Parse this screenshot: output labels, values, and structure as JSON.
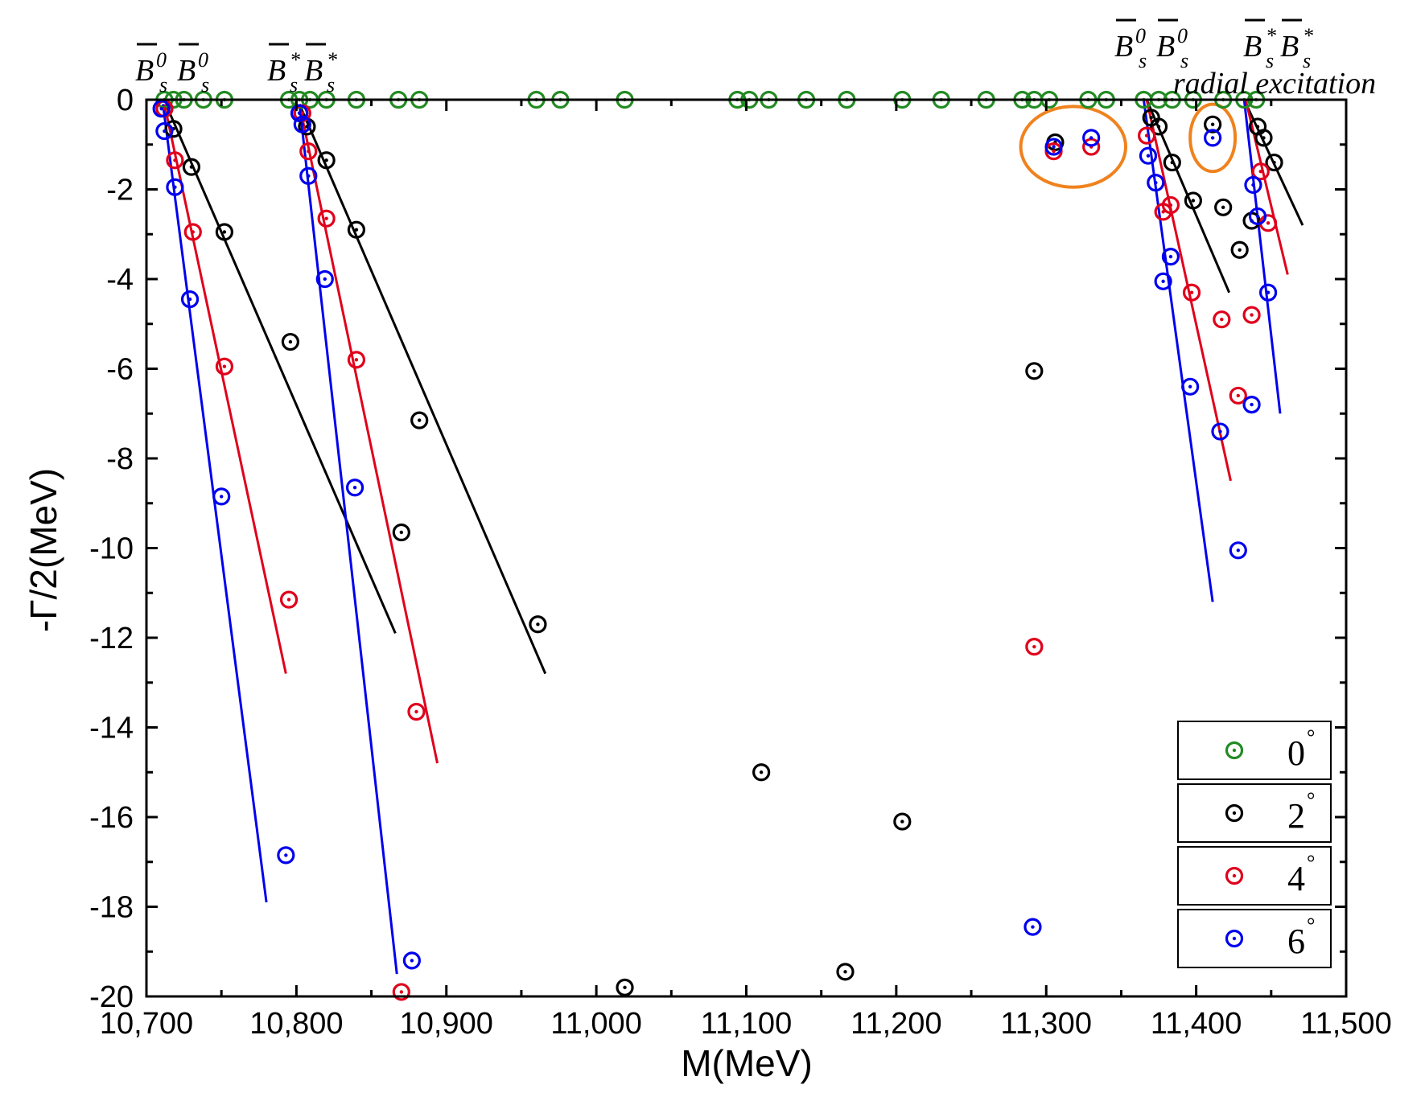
{
  "chart_data": {
    "type": "scatter",
    "xlabel": "M(MeV)",
    "ylabel": "-Γ/2(MeV)",
    "xlim": [
      10700,
      11500
    ],
    "ylim": [
      -20,
      0
    ],
    "x_ticks": [
      10700,
      10800,
      10900,
      11000,
      11100,
      11200,
      11300,
      11400,
      11500
    ],
    "x_tick_labels": [
      "10,700",
      "10,800",
      "10,900",
      "11,000",
      "11,100",
      "11,200",
      "11,300",
      "11,400",
      "11,500"
    ],
    "y_ticks": [
      0,
      -2,
      -4,
      -6,
      -8,
      -10,
      -12,
      -14,
      -16,
      -18,
      -20
    ],
    "y_tick_labels": [
      "0",
      "-2",
      "-4",
      "-6",
      "-8",
      "-10",
      "-12",
      "-14",
      "-16",
      "-18",
      "-20"
    ],
    "series": [
      {
        "name": "0°",
        "angle": "0",
        "color": "#228B22",
        "points": [
          [
            10712,
            0
          ],
          [
            10718,
            0
          ],
          [
            10725,
            0
          ],
          [
            10738,
            0
          ],
          [
            10752,
            0
          ],
          [
            10795,
            0
          ],
          [
            10802,
            0
          ],
          [
            10809,
            0
          ],
          [
            10820,
            0
          ],
          [
            10840,
            0
          ],
          [
            10868,
            0
          ],
          [
            10882,
            0
          ],
          [
            10960,
            0
          ],
          [
            10976,
            0
          ],
          [
            11019,
            0
          ],
          [
            11094,
            0
          ],
          [
            11102,
            0
          ],
          [
            11115,
            0
          ],
          [
            11140,
            0
          ],
          [
            11167,
            0
          ],
          [
            11204,
            0
          ],
          [
            11230,
            0
          ],
          [
            11260,
            0
          ],
          [
            11284,
            0
          ],
          [
            11292,
            0
          ],
          [
            11302,
            0
          ],
          [
            11328,
            0
          ],
          [
            11340,
            0
          ],
          [
            11365,
            0
          ],
          [
            11375,
            0
          ],
          [
            11384,
            0
          ],
          [
            11398,
            0
          ],
          [
            11418,
            0
          ],
          [
            11432,
            0
          ],
          [
            11440,
            0
          ]
        ]
      },
      {
        "name": "2°",
        "angle": "2",
        "color": "#000000",
        "points": [
          [
            10712,
            -0.2
          ],
          [
            10718,
            -0.65
          ],
          [
            10730,
            -1.5
          ],
          [
            10752,
            -2.95
          ],
          [
            10796,
            -5.4
          ],
          [
            10802,
            -0.3
          ],
          [
            10807,
            -0.6
          ],
          [
            10820,
            -1.35
          ],
          [
            10840,
            -2.9
          ],
          [
            10870,
            -9.65
          ],
          [
            10882,
            -7.15
          ],
          [
            10961,
            -11.7
          ],
          [
            11019,
            -19.8
          ],
          [
            11110,
            -15.0
          ],
          [
            11166,
            -19.45
          ],
          [
            11204,
            -16.1
          ],
          [
            11292,
            -6.05
          ],
          [
            11306,
            -0.95
          ],
          [
            11370,
            -0.4
          ],
          [
            11375,
            -0.6
          ],
          [
            11384,
            -1.4
          ],
          [
            11398,
            -2.25
          ],
          [
            11411,
            -0.55
          ],
          [
            11418,
            -2.4
          ],
          [
            11429,
            -3.35
          ],
          [
            11437,
            -2.7
          ],
          [
            11441,
            -0.6
          ],
          [
            11445,
            -0.85
          ],
          [
            11452,
            -1.4
          ]
        ]
      },
      {
        "name": "4°",
        "angle": "4",
        "color": "#E0001B",
        "points": [
          [
            10712,
            -0.2
          ],
          [
            10719,
            -1.35
          ],
          [
            10731,
            -2.95
          ],
          [
            10752,
            -5.95
          ],
          [
            10795,
            -11.15
          ],
          [
            10804,
            -0.3
          ],
          [
            10808,
            -1.15
          ],
          [
            10820,
            -2.65
          ],
          [
            10840,
            -5.8
          ],
          [
            10870,
            -19.9
          ],
          [
            10880,
            -13.65
          ],
          [
            11292,
            -12.2
          ],
          [
            11305,
            -1.15
          ],
          [
            11330,
            -1.05
          ],
          [
            11367,
            -0.8
          ],
          [
            11378,
            -2.5
          ],
          [
            11383,
            -2.35
          ],
          [
            11397,
            -4.3
          ],
          [
            11417,
            -4.9
          ],
          [
            11428,
            -6.6
          ],
          [
            11437,
            -4.8
          ],
          [
            11443,
            -1.6
          ],
          [
            11448,
            -2.75
          ]
        ]
      },
      {
        "name": "6°",
        "angle": "6",
        "color": "#0000EE",
        "points": [
          [
            10710,
            -0.2
          ],
          [
            10712,
            -0.7
          ],
          [
            10719,
            -1.95
          ],
          [
            10729,
            -4.45
          ],
          [
            10750,
            -8.85
          ],
          [
            10793,
            -16.85
          ],
          [
            10802,
            -0.3
          ],
          [
            10804,
            -0.55
          ],
          [
            10808,
            -1.7
          ],
          [
            10819,
            -4.0
          ],
          [
            10839,
            -8.65
          ],
          [
            10877,
            -19.2
          ],
          [
            11291,
            -18.45
          ],
          [
            11305,
            -1.05
          ],
          [
            11330,
            -0.85
          ],
          [
            11368,
            -1.25
          ],
          [
            11373,
            -1.85
          ],
          [
            11378,
            -4.05
          ],
          [
            11383,
            -3.5
          ],
          [
            11396,
            -6.4
          ],
          [
            11411,
            -0.85
          ],
          [
            11416,
            -7.4
          ],
          [
            11428,
            -10.05
          ],
          [
            11437,
            -6.8
          ],
          [
            11438,
            -1.9
          ],
          [
            11441,
            -2.6
          ],
          [
            11448,
            -4.3
          ]
        ]
      }
    ],
    "trend_lines": [
      {
        "color": "#000000",
        "from": [
          10713,
          -0.1
        ],
        "to": [
          10866,
          -11.9
        ]
      },
      {
        "color": "#E0001B",
        "from": [
          10712,
          -0.1
        ],
        "to": [
          10793,
          -12.8
        ]
      },
      {
        "color": "#0000EE",
        "from": [
          10711,
          -0.1
        ],
        "to": [
          10780,
          -17.9
        ]
      },
      {
        "color": "#000000",
        "from": [
          10802,
          -0.1
        ],
        "to": [
          10966,
          -12.8
        ]
      },
      {
        "color": "#E0001B",
        "from": [
          10802,
          -0.1
        ],
        "to": [
          10894,
          -14.8
        ]
      },
      {
        "color": "#0000EE",
        "from": [
          10802,
          -0.1
        ],
        "to": [
          10867,
          -19.5
        ]
      },
      {
        "color": "#000000",
        "from": [
          11367,
          0
        ],
        "to": [
          11422,
          -4.3
        ]
      },
      {
        "color": "#E0001B",
        "from": [
          11367,
          0
        ],
        "to": [
          11423,
          -8.5
        ]
      },
      {
        "color": "#0000EE",
        "from": [
          11365,
          0
        ],
        "to": [
          11411,
          -11.2
        ]
      },
      {
        "color": "#000000",
        "from": [
          11432,
          0
        ],
        "to": [
          11471,
          -2.8
        ]
      },
      {
        "color": "#E0001B",
        "from": [
          11433,
          0
        ],
        "to": [
          11461,
          -3.9
        ]
      },
      {
        "color": "#0000EE",
        "from": [
          11432,
          0
        ],
        "to": [
          11456,
          -7.0
        ]
      }
    ],
    "highlight_ellipses": [
      {
        "color": "#F0821E",
        "center": [
          11318,
          -1.05
        ],
        "rx": 35,
        "ry": 0.9
      },
      {
        "color": "#F0821E",
        "center": [
          11411,
          -0.85
        ],
        "rx": 15,
        "ry": 0.75
      }
    ],
    "annotations": {
      "threshold_1": {
        "base": "B",
        "sup": "0",
        "sub": "s",
        "bar": true,
        "pair": true
      },
      "threshold_2": {
        "base": "B",
        "sup": "*",
        "sub": "s",
        "bar": true,
        "pair": true
      },
      "threshold_3": {
        "base": "B",
        "sup": "0",
        "sub": "s",
        "bar": true,
        "pair": true
      },
      "threshold_4": {
        "base": "B",
        "sup": "*",
        "sub": "s",
        "bar": true,
        "pair": true
      },
      "radial_text": "radial excitation"
    },
    "legend": {
      "position": "bottom-right",
      "degree_symbol": "°"
    }
  }
}
